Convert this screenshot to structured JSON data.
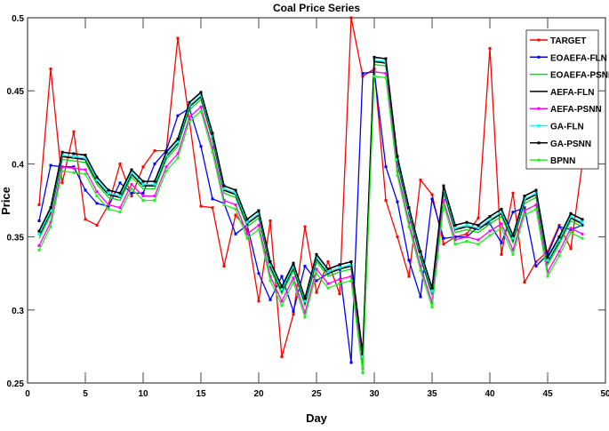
{
  "chart_data": {
    "type": "line",
    "title": "Coal Price Series",
    "xlabel": "Day",
    "ylabel": "Price",
    "xlim": [
      0,
      50
    ],
    "ylim": [
      0.25,
      0.5
    ],
    "xticks": [
      0,
      5,
      10,
      15,
      20,
      25,
      30,
      35,
      40,
      45,
      50
    ],
    "yticks": [
      0.25,
      0.3,
      0.35,
      0.4,
      0.45,
      0.5
    ],
    "grid": false,
    "legend_position": "top-right",
    "x": [
      1,
      2,
      3,
      4,
      5,
      6,
      7,
      8,
      9,
      10,
      11,
      12,
      13,
      14,
      15,
      16,
      17,
      18,
      19,
      20,
      21,
      22,
      23,
      24,
      25,
      26,
      27,
      28,
      29,
      30,
      31,
      32,
      33,
      34,
      35,
      36,
      37,
      38,
      39,
      40,
      41,
      42,
      43,
      44,
      45,
      46,
      47,
      48
    ],
    "series": [
      {
        "name": "TARGET",
        "color": "#ff0000",
        "marker": true,
        "values": [
          0.372,
          0.465,
          0.387,
          0.422,
          0.362,
          0.358,
          0.372,
          0.4,
          0.378,
          0.398,
          0.409,
          0.409,
          0.486,
          0.43,
          0.371,
          0.37,
          0.33,
          0.365,
          0.355,
          0.306,
          0.361,
          0.268,
          0.297,
          0.357,
          0.312,
          0.333,
          0.311,
          0.5,
          0.46,
          0.465,
          0.375,
          0.35,
          0.323,
          0.389,
          0.379,
          0.345,
          0.35,
          0.352,
          0.363,
          0.479,
          0.338,
          0.38,
          0.319,
          0.333,
          0.34,
          0.358,
          0.342,
          0.4
        ]
      },
      {
        "name": "EOAEFA-FLN",
        "color": "#0000ff",
        "marker": true,
        "values": [
          0.361,
          0.399,
          0.398,
          0.398,
          0.382,
          0.373,
          0.371,
          0.387,
          0.38,
          0.38,
          0.4,
          0.409,
          0.433,
          0.438,
          0.412,
          0.376,
          0.373,
          0.352,
          0.358,
          0.325,
          0.307,
          0.323,
          0.299,
          0.33,
          0.32,
          0.325,
          0.328,
          0.264,
          0.462,
          0.463,
          0.398,
          0.374,
          0.334,
          0.309,
          0.376,
          0.349,
          0.35,
          0.35,
          0.357,
          0.359,
          0.346,
          0.367,
          0.37,
          0.33,
          0.338,
          0.357,
          0.355,
          0.358
        ]
      },
      {
        "name": "EOAEFA-PSNN",
        "color": "#00dd00",
        "marker": false,
        "values": [
          0.349,
          0.365,
          0.403,
          0.402,
          0.401,
          0.386,
          0.377,
          0.375,
          0.391,
          0.383,
          0.383,
          0.403,
          0.412,
          0.437,
          0.444,
          0.416,
          0.38,
          0.377,
          0.357,
          0.363,
          0.328,
          0.311,
          0.327,
          0.303,
          0.333,
          0.323,
          0.326,
          0.328,
          0.265,
          0.468,
          0.467,
          0.4,
          0.365,
          0.335,
          0.31,
          0.38,
          0.353,
          0.355,
          0.353,
          0.359,
          0.364,
          0.346,
          0.373,
          0.377,
          0.331,
          0.345,
          0.361,
          0.357
        ]
      },
      {
        "name": "AEFA-FLN",
        "color": "#000000",
        "marker": false,
        "values": [
          0.351,
          0.367,
          0.405,
          0.404,
          0.403,
          0.388,
          0.379,
          0.377,
          0.393,
          0.385,
          0.385,
          0.405,
          0.414,
          0.439,
          0.446,
          0.418,
          0.382,
          0.379,
          0.359,
          0.365,
          0.33,
          0.313,
          0.329,
          0.305,
          0.335,
          0.325,
          0.328,
          0.33,
          0.267,
          0.47,
          0.469,
          0.402,
          0.367,
          0.337,
          0.312,
          0.382,
          0.355,
          0.357,
          0.355,
          0.361,
          0.366,
          0.348,
          0.375,
          0.379,
          0.333,
          0.347,
          0.363,
          0.359
        ]
      },
      {
        "name": "AEFA-PSNN",
        "color": "#ff00ff",
        "marker": true,
        "values": [
          0.344,
          0.36,
          0.398,
          0.397,
          0.396,
          0.381,
          0.372,
          0.37,
          0.386,
          0.378,
          0.378,
          0.398,
          0.407,
          0.432,
          0.439,
          0.411,
          0.375,
          0.372,
          0.352,
          0.358,
          0.323,
          0.306,
          0.322,
          0.298,
          0.328,
          0.318,
          0.321,
          0.323,
          0.26,
          0.463,
          0.462,
          0.395,
          0.36,
          0.33,
          0.305,
          0.375,
          0.348,
          0.35,
          0.348,
          0.354,
          0.359,
          0.341,
          0.368,
          0.372,
          0.326,
          0.34,
          0.356,
          0.352
        ]
      },
      {
        "name": "GA-FLN",
        "color": "#00ffff",
        "marker": true,
        "values": [
          0.352,
          0.368,
          0.406,
          0.405,
          0.404,
          0.389,
          0.38,
          0.378,
          0.394,
          0.386,
          0.386,
          0.406,
          0.415,
          0.44,
          0.447,
          0.419,
          0.383,
          0.38,
          0.36,
          0.366,
          0.331,
          0.314,
          0.33,
          0.306,
          0.336,
          0.326,
          0.329,
          0.331,
          0.268,
          0.471,
          0.47,
          0.403,
          0.368,
          0.338,
          0.313,
          0.383,
          0.356,
          0.358,
          0.356,
          0.362,
          0.367,
          0.349,
          0.376,
          0.38,
          0.334,
          0.348,
          0.364,
          0.36
        ]
      },
      {
        "name": "GA-PSNN",
        "color": "#000000",
        "marker": true,
        "values": [
          0.354,
          0.37,
          0.408,
          0.407,
          0.406,
          0.391,
          0.382,
          0.38,
          0.396,
          0.388,
          0.388,
          0.408,
          0.417,
          0.442,
          0.449,
          0.421,
          0.385,
          0.382,
          0.362,
          0.368,
          0.333,
          0.316,
          0.332,
          0.308,
          0.338,
          0.328,
          0.331,
          0.333,
          0.27,
          0.473,
          0.472,
          0.405,
          0.37,
          0.34,
          0.315,
          0.385,
          0.358,
          0.36,
          0.358,
          0.364,
          0.369,
          0.351,
          0.378,
          0.382,
          0.336,
          0.35,
          0.366,
          0.362
        ]
      },
      {
        "name": "BPNN",
        "color": "#22ee22",
        "marker": true,
        "values": [
          0.341,
          0.357,
          0.395,
          0.394,
          0.393,
          0.378,
          0.369,
          0.367,
          0.383,
          0.375,
          0.375,
          0.395,
          0.404,
          0.429,
          0.436,
          0.408,
          0.372,
          0.369,
          0.349,
          0.355,
          0.32,
          0.303,
          0.319,
          0.295,
          0.325,
          0.315,
          0.318,
          0.32,
          0.257,
          0.46,
          0.459,
          0.392,
          0.357,
          0.327,
          0.302,
          0.372,
          0.345,
          0.347,
          0.345,
          0.351,
          0.356,
          0.338,
          0.365,
          0.369,
          0.323,
          0.337,
          0.353,
          0.349
        ]
      }
    ]
  }
}
